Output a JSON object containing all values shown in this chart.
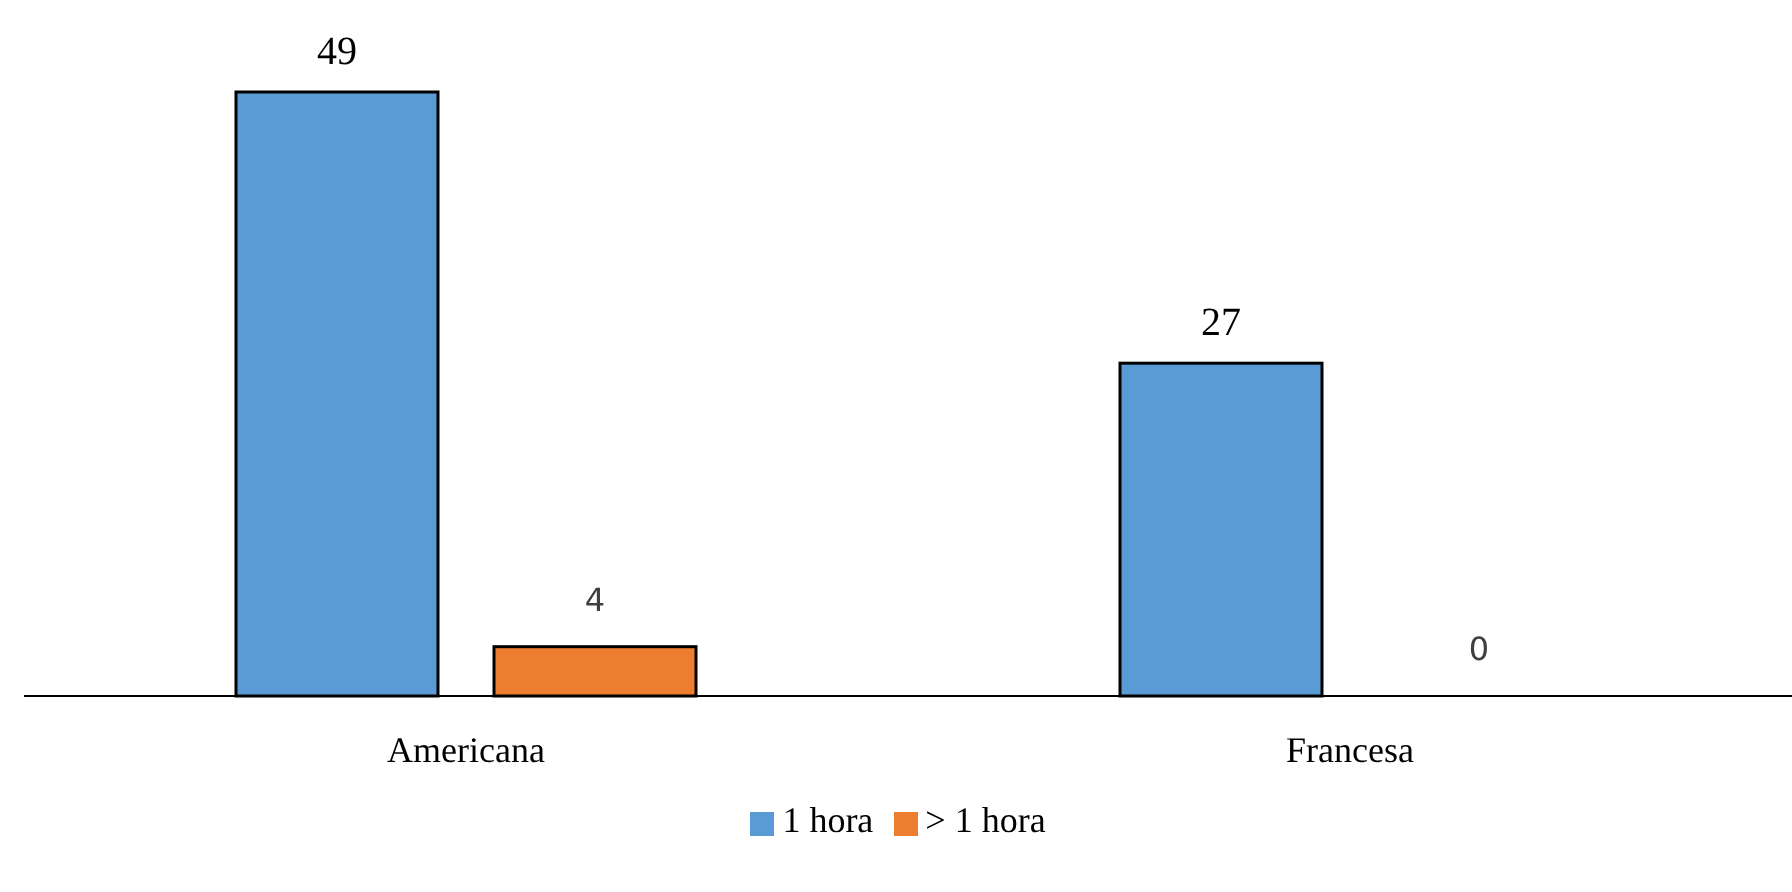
{
  "chart_data": {
    "type": "bar",
    "categories": [
      "Americana",
      "Francesa"
    ],
    "series": [
      {
        "name": "1 hora",
        "color": "#5b9bd5",
        "values": [
          49,
          27
        ]
      },
      {
        "name": "> 1 hora",
        "color": "#ed7d31",
        "values": [
          4,
          0
        ]
      }
    ],
    "data_labels": true,
    "legend": "bottom",
    "grid": false
  }
}
